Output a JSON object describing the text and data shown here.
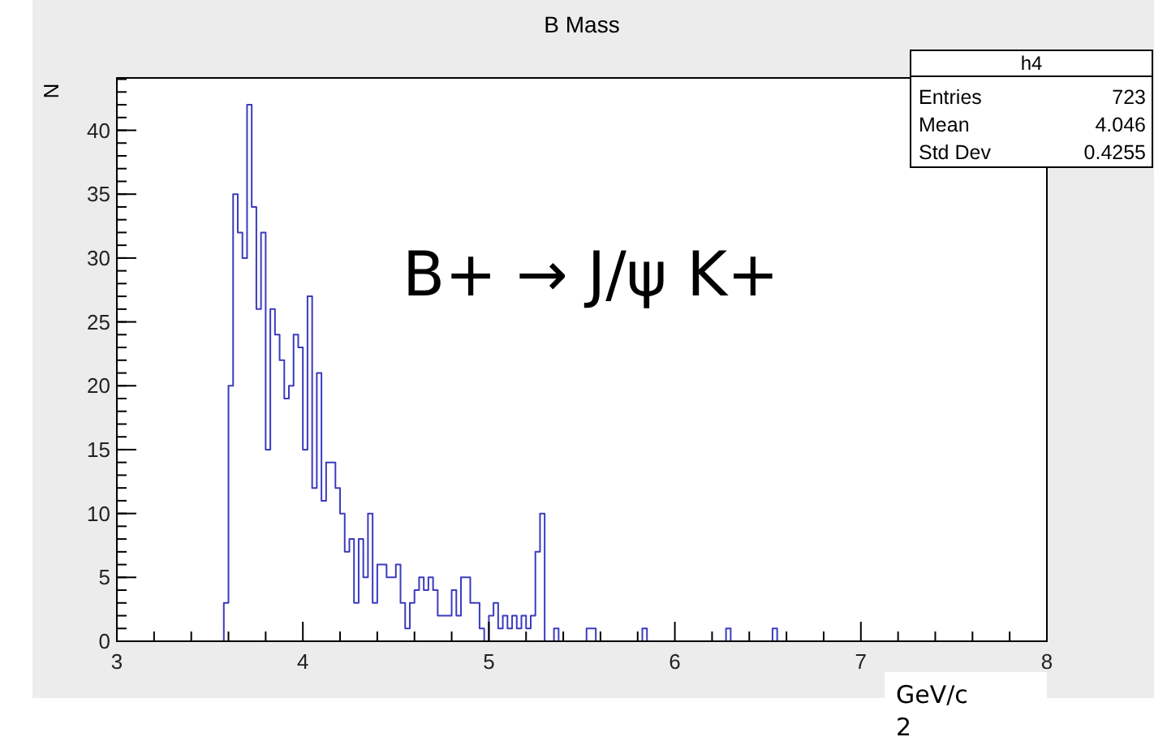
{
  "chart_data": {
    "type": "histogram",
    "title": "B Mass",
    "xlabel": "GeV/c\n2",
    "ylabel": "N",
    "bins": [
      3.575,
      3.6,
      3.625,
      3.65,
      3.675,
      3.7,
      3.725,
      3.75,
      3.775,
      3.8,
      3.825,
      3.85,
      3.875,
      3.9,
      3.925,
      3.95,
      3.975,
      4,
      4.025,
      4.05,
      4.075,
      4.1,
      4.125,
      4.15,
      4.175,
      4.2,
      4.225,
      4.25,
      4.275,
      4.3,
      4.325,
      4.35,
      4.375,
      4.4,
      4.425,
      4.45,
      4.475,
      4.5,
      4.525,
      4.55,
      4.575,
      4.6,
      4.625,
      4.65,
      4.675,
      4.7,
      4.725,
      4.75,
      4.775,
      4.8,
      4.825,
      4.85,
      4.875,
      4.9,
      4.925,
      4.95,
      4.975,
      5,
      5.025,
      5.05,
      5.075,
      5.1,
      5.125,
      5.15,
      5.175,
      5.2,
      5.225,
      5.25,
      5.275,
      5.3,
      5.325,
      5.35,
      5.375,
      5.4,
      5.425,
      5.45,
      5.475,
      5.5,
      5.525,
      5.55,
      5.575,
      5.6,
      5.625,
      5.65,
      5.675,
      5.7,
      5.725,
      5.75,
      5.775,
      5.8,
      5.825,
      5.85,
      5.875,
      5.9,
      5.925,
      5.95,
      5.975,
      6,
      6.025,
      6.05,
      6.075,
      6.1,
      6.125,
      6.15,
      6.175,
      6.2,
      6.225,
      6.25,
      6.275,
      6.3,
      6.325,
      6.35,
      6.375,
      6.4,
      6.425,
      6.45,
      6.475,
      6.5,
      6.525,
      6.55
    ],
    "values": [
      3,
      20,
      35,
      32,
      30,
      42,
      34,
      26,
      32,
      15,
      26,
      24,
      22,
      19,
      20,
      24,
      23,
      15,
      27,
      12,
      21,
      11,
      14,
      14,
      12,
      10,
      7,
      8,
      3,
      8,
      5,
      10,
      3,
      6,
      6,
      5,
      5,
      6,
      3,
      1,
      3,
      4,
      5,
      4,
      5,
      4,
      2,
      2,
      2,
      4,
      2,
      5,
      5,
      3,
      3,
      1,
      0,
      2,
      3,
      1,
      2,
      1,
      2,
      1,
      2,
      1,
      2,
      7,
      10,
      0,
      0,
      1,
      0,
      0,
      0,
      0,
      0,
      0,
      1,
      1,
      0,
      0,
      0,
      0,
      0,
      0,
      0,
      0,
      0,
      0,
      1,
      0,
      0,
      0,
      0,
      0,
      0,
      0,
      0,
      0,
      0,
      0,
      0,
      0,
      0,
      0,
      0,
      0,
      1,
      0,
      0,
      0,
      0,
      0,
      0,
      0,
      0,
      0,
      1
    ],
    "color": "#3b3bbf",
    "xlim": [
      3,
      8
    ],
    "xticks": [
      3,
      4,
      5,
      6,
      7,
      8,
      {
        "value": 3.2,
        "label": null
      },
      {
        "value": 3.4,
        "label": null
      },
      {
        "value": 3.6,
        "label": null
      },
      {
        "value": 3.8,
        "label": null
      },
      {
        "value": 4.2,
        "label": null
      },
      {
        "value": 4.4,
        "label": null
      },
      {
        "value": 4.6,
        "label": null
      },
      {
        "value": 4.8,
        "label": null
      },
      {
        "value": 5.2,
        "label": null
      },
      {
        "value": 5.4,
        "label": null
      },
      {
        "value": 5.6,
        "label": null
      },
      {
        "value": 5.8,
        "label": null
      },
      {
        "value": 6.2,
        "label": null
      },
      {
        "value": 6.4,
        "label": null
      },
      {
        "value": 6.6,
        "label": null
      },
      {
        "value": 6.8,
        "label": null
      },
      {
        "value": 7.2,
        "label": null
      },
      {
        "value": 7.4,
        "label": null
      },
      {
        "value": 7.6,
        "label": null
      },
      {
        "value": 7.8,
        "label": null
      }
    ],
    "ylim": [
      0,
      44.1
    ],
    "yticks": [
      0,
      5,
      10,
      15,
      20,
      25,
      30,
      35,
      40
    ],
    "grid": false,
    "annotations": [
      "h4",
      "Entries",
      "723",
      "Mean",
      "4.046",
      "Std Dev",
      "0.4255",
      "B+ → J/ψ K+"
    ]
  }
}
